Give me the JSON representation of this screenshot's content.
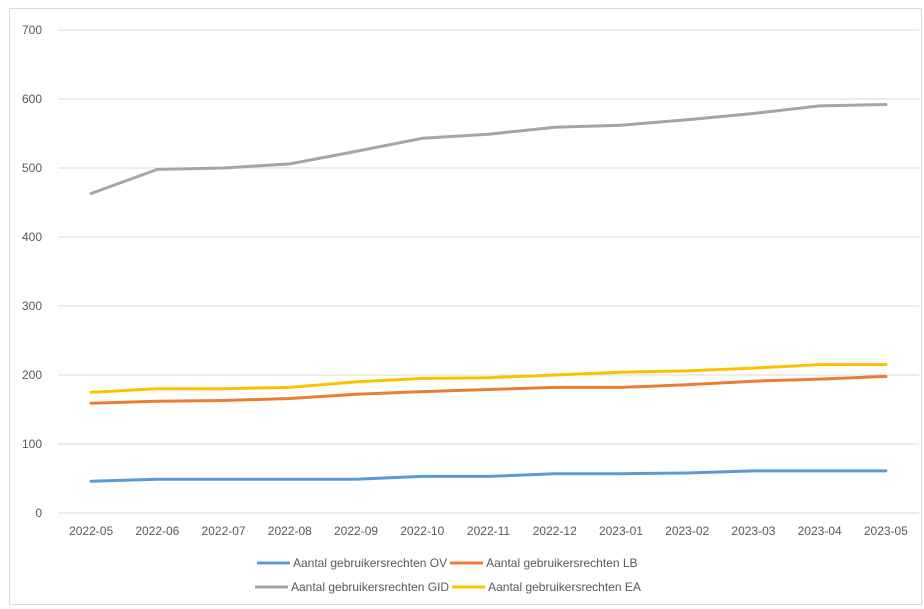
{
  "chart_data": {
    "type": "line",
    "title": "",
    "xlabel": "",
    "ylabel": "",
    "categories": [
      "2022-05",
      "2022-06",
      "2022-07",
      "2022-08",
      "2022-09",
      "2022-10",
      "2022-11",
      "2022-12",
      "2023-01",
      "2023-02",
      "2023-03",
      "2023-04",
      "2023-05"
    ],
    "ylim": [
      0,
      700
    ],
    "yticks": [
      0,
      100,
      200,
      300,
      400,
      500,
      600,
      700
    ],
    "grid": true,
    "legend_position": "bottom",
    "series": [
      {
        "name": "Aantal gebruikersrechten OV",
        "color": "#5b9bd5",
        "values": [
          46,
          49,
          49,
          49,
          49,
          53,
          53,
          57,
          57,
          58,
          61,
          61,
          61
        ]
      },
      {
        "name": "Aantal gebruikersrechten LB",
        "color": "#ed7d31",
        "values": [
          159,
          162,
          163,
          166,
          172,
          176,
          179,
          182,
          182,
          186,
          191,
          194,
          198
        ]
      },
      {
        "name": "Aantal gebruikersrechten GID",
        "color": "#a5a5a5",
        "values": [
          463,
          498,
          500,
          506,
          524,
          543,
          549,
          559,
          562,
          570,
          579,
          590,
          592
        ]
      },
      {
        "name": "Aantal gebruikersrechten EA",
        "color": "#ffc000",
        "values": [
          175,
          180,
          180,
          182,
          190,
          195,
          196,
          200,
          204,
          206,
          210,
          215,
          215
        ]
      }
    ]
  }
}
